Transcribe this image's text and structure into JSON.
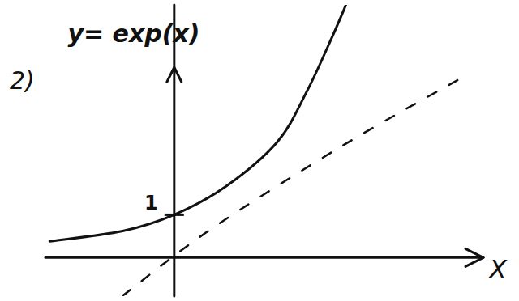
{
  "chart_data": {
    "type": "line",
    "title": "y= exp(x)",
    "annotations": [
      "2)"
    ],
    "x_label": "X",
    "xlim": [
      -3,
      7.2
    ],
    "ylim": [
      -0.9,
      5.9
    ],
    "yticks": [
      1
    ],
    "tick_labels": "y",
    "grid": false,
    "series": [
      {
        "x": [
          -2.9,
          -1.2,
          0,
          1.2,
          2.4,
          3.1,
          3.7,
          4.0
        ],
        "values": [
          0.38,
          0.62,
          1,
          1.66,
          2.7,
          3.9,
          5.2,
          5.9
        ],
        "color": "#111111",
        "line_style": "solid"
      },
      {
        "x": [
          -1.2,
          0.85,
          3.9,
          6.7
        ],
        "values": [
          -0.89,
          0.66,
          2.6,
          4.2
        ],
        "color": "#111111",
        "line_style": "dashed"
      }
    ]
  }
}
